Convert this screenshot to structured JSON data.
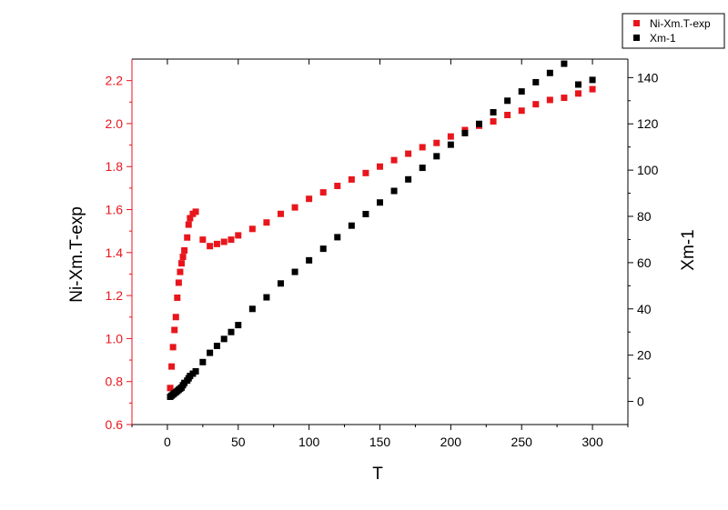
{
  "chart_data": {
    "type": "scatter",
    "xlabel": "T",
    "ylabel_left": "Ni-Xm.T-exp",
    "ylabel_right": "Xm-1",
    "xlim": [
      -25,
      325
    ],
    "ylim_left": [
      0.6,
      2.3
    ],
    "ylim_right": [
      -10,
      148
    ],
    "x_ticks": [
      0,
      50,
      100,
      150,
      200,
      250,
      300
    ],
    "y_left_ticks": [
      0.6,
      0.8,
      1.0,
      1.2,
      1.4,
      1.6,
      1.8,
      2.0,
      2.2
    ],
    "y_right_ticks": [
      0,
      20,
      40,
      60,
      80,
      100,
      120,
      140
    ],
    "legend_position": "top-right-outside",
    "colors": {
      "left": "#e8161c",
      "right": "#000000"
    },
    "series": [
      {
        "name": "Ni-Xm.T-exp",
        "axis": "left",
        "marker": "square",
        "x": [
          2,
          3,
          4,
          5,
          6,
          7,
          8,
          9,
          10,
          11,
          12,
          14,
          15,
          16,
          18,
          20,
          25,
          30,
          35,
          40,
          45,
          50,
          60,
          70,
          80,
          90,
          100,
          110,
          120,
          130,
          140,
          150,
          160,
          170,
          180,
          190,
          200,
          210,
          220,
          230,
          240,
          250,
          260,
          270,
          280,
          290,
          300
        ],
        "y": [
          0.77,
          0.87,
          0.96,
          1.04,
          1.1,
          1.19,
          1.26,
          1.31,
          1.35,
          1.38,
          1.41,
          1.47,
          1.53,
          1.56,
          1.58,
          1.59,
          1.46,
          1.43,
          1.44,
          1.45,
          1.46,
          1.48,
          1.51,
          1.54,
          1.58,
          1.61,
          1.65,
          1.68,
          1.71,
          1.74,
          1.77,
          1.8,
          1.83,
          1.86,
          1.89,
          1.91,
          1.94,
          1.97,
          1.99,
          2.01,
          2.04,
          2.06,
          2.09,
          2.11,
          2.12,
          2.14,
          2.16
        ]
      },
      {
        "name": "Xm-1",
        "axis": "right",
        "marker": "square",
        "x": [
          2,
          3,
          4,
          5,
          6,
          7,
          8,
          9,
          10,
          11,
          12,
          14,
          15,
          16,
          18,
          20,
          25,
          30,
          35,
          40,
          45,
          50,
          60,
          70,
          80,
          90,
          100,
          110,
          120,
          130,
          140,
          150,
          160,
          170,
          180,
          190,
          200,
          210,
          220,
          230,
          240,
          250,
          260,
          270,
          280,
          290,
          300
        ],
        "y": [
          2,
          2.5,
          3,
          3.5,
          4,
          4.5,
          5,
          5.5,
          6,
          7,
          8,
          9,
          10,
          11,
          12,
          13,
          17,
          21,
          24,
          27,
          30,
          33,
          40,
          45,
          51,
          56,
          61,
          66,
          71,
          76,
          81,
          86,
          91,
          96,
          101,
          106,
          111,
          116,
          120,
          125,
          130,
          134,
          138,
          142,
          146,
          137,
          139
        ]
      }
    ]
  }
}
